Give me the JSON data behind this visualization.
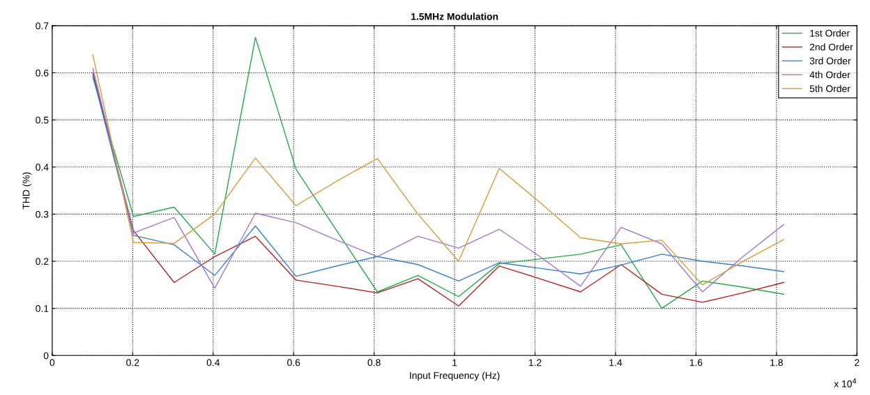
{
  "chart_data": {
    "type": "line",
    "title": "1.5MHz Modulation",
    "xlabel": "Input Frequency (Hz)",
    "ylabel": "THD (%)",
    "annotations": [
      "x 10$^{4}$"
    ],
    "x": [
      0.101,
      0.202,
      0.303,
      0.404,
      0.505,
      0.606,
      0.707,
      0.808,
      0.909,
      1.01,
      1.111,
      1.212,
      1.313,
      1.414,
      1.515,
      1.616,
      1.717,
      1.818
    ],
    "series": [
      {
        "name": "1st Order",
        "color": "#26a84a",
        "values": [
          0.59,
          0.295,
          0.315,
          0.215,
          0.675,
          0.395,
          0.265,
          0.135,
          0.17,
          0.125,
          0.195,
          0.205,
          0.215,
          0.235,
          0.1,
          0.158,
          0.145,
          0.13
        ]
      },
      {
        "name": "2nd Order",
        "color": "#b22222",
        "values": [
          0.6,
          0.265,
          0.155,
          0.21,
          0.253,
          0.16,
          0.147,
          0.133,
          0.163,
          0.105,
          0.19,
          0.163,
          0.135,
          0.193,
          0.13,
          0.113,
          0.133,
          0.155
        ]
      },
      {
        "name": "3rd Order",
        "color": "#3b7fc4",
        "values": [
          0.595,
          0.255,
          0.235,
          0.17,
          0.275,
          0.168,
          0.19,
          0.21,
          0.193,
          0.158,
          0.197,
          0.185,
          0.173,
          0.192,
          0.215,
          0.2,
          0.19,
          0.178
        ]
      },
      {
        "name": "4th Order",
        "color": "#a078d0",
        "values": [
          0.61,
          0.26,
          0.293,
          0.143,
          0.302,
          0.282,
          0.245,
          0.21,
          0.253,
          0.228,
          0.268,
          0.21,
          0.147,
          0.272,
          0.237,
          0.135,
          0.21,
          0.278
        ]
      },
      {
        "name": "5th Order",
        "color": "#d49a3c",
        "values": [
          0.638,
          0.24,
          0.238,
          0.3,
          0.419,
          0.318,
          0.37,
          0.418,
          0.3,
          0.2,
          0.397,
          0.325,
          0.25,
          0.237,
          0.245,
          0.15,
          0.2,
          0.246
        ]
      }
    ],
    "xlim": [
      0,
      2
    ],
    "xticks": [
      0,
      0.2,
      0.4,
      0.6,
      0.8,
      1,
      1.2,
      1.4,
      1.6,
      1.8,
      2
    ],
    "ylim": [
      0,
      0.7
    ],
    "yticks": [
      0,
      0.1,
      0.2,
      0.3,
      0.4,
      0.5,
      0.6,
      0.7
    ],
    "grid": true,
    "legend": "top right",
    "marker": "none",
    "line_style": "solid"
  }
}
